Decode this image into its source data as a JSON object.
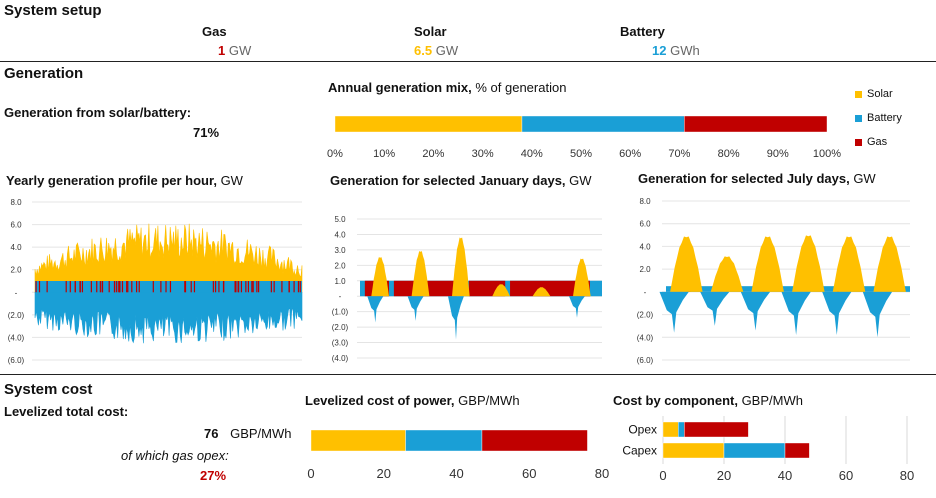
{
  "colors": {
    "solar": "#FFC000",
    "battery": "#1A9FD6",
    "gas": "#C00000",
    "grid": "#D9D9D9",
    "axis": "#595959"
  },
  "setup": {
    "title": "System setup",
    "gas": {
      "label": "Gas",
      "value": "1",
      "unit": "GW"
    },
    "solar": {
      "label": "Solar",
      "value": "6.5",
      "unit": "GW"
    },
    "battery": {
      "label": "Battery",
      "value": "12",
      "unit": "GWh"
    }
  },
  "generation": {
    "title": "Generation",
    "share_label": "Generation from solar/battery:",
    "share_value": "71%"
  },
  "cost": {
    "title": "System cost",
    "total_label": "Levelized total cost:",
    "total_value": "76",
    "total_unit": "GBP/MWh",
    "opex_label": "of which gas opex:",
    "opex_value": "27%"
  },
  "chart_titles": {
    "mix": {
      "bold": "Annual generation mix,",
      "rest": " % of generation"
    },
    "yearly": {
      "bold": "Yearly generation profile per hour,",
      "rest": " GW"
    },
    "jan": {
      "bold": "Generation for selected January days,",
      "rest": " GW"
    },
    "jul": {
      "bold": "Generation for selected July days,",
      "rest": " GW"
    },
    "lcop": {
      "bold": "Levelized cost of power,",
      "rest": " GBP/MWh"
    },
    "comp": {
      "bold": "Cost by component,",
      "rest": " GBP/MWh"
    }
  },
  "chart_data": [
    {
      "id": "mix",
      "type": "bar",
      "orientation": "horizontal",
      "stacked": true,
      "categories": [
        ""
      ],
      "series": [
        {
          "name": "Solar",
          "values": [
            38
          ]
        },
        {
          "name": "Battery",
          "values": [
            33
          ]
        },
        {
          "name": "Gas",
          "values": [
            29
          ]
        }
      ],
      "xlim": [
        0,
        100
      ],
      "xticks": [
        "0%",
        "10%",
        "20%",
        "30%",
        "40%",
        "50%",
        "60%",
        "70%",
        "80%",
        "90%",
        "100%"
      ],
      "legend": "right"
    },
    {
      "id": "yearly",
      "type": "area",
      "description_of_series": "hourly values over one year",
      "ylim": [
        -6,
        8
      ],
      "yticks": [
        "8.0",
        "6.0",
        "4.0",
        "2.0",
        "-",
        "(2.0)",
        "(4.0)",
        "(6.0)"
      ],
      "series": [
        {
          "name": "Solar",
          "envelope_max": 6.3
        },
        {
          "name": "Battery",
          "envelope_min": -4.6
        },
        {
          "name": "Gas",
          "level": 1.0
        }
      ],
      "grid": true
    },
    {
      "id": "jan",
      "type": "area",
      "ylim": [
        -4,
        5
      ],
      "yticks": [
        "5.0",
        "4.0",
        "3.0",
        "2.0",
        "1.0",
        "-",
        "(1.0)",
        "(2.0)",
        "(3.0)",
        "(4.0)"
      ],
      "series": [
        {
          "name": "Solar",
          "peaks": [
            2.6,
            3.0,
            3.9,
            0.8,
            0.6,
            2.5
          ]
        },
        {
          "name": "Battery",
          "discharge_peaks": [
            -1.7,
            -1.6,
            -2.8,
            0,
            0,
            -1.4
          ]
        },
        {
          "name": "Gas",
          "level": 1.0
        }
      ],
      "grid": true
    },
    {
      "id": "jul",
      "type": "area",
      "ylim": [
        -6,
        8
      ],
      "yticks": [
        "8.0",
        "6.0",
        "4.0",
        "2.0",
        "-",
        "(2.0)",
        "(4.0)",
        "(6.0)"
      ],
      "series": [
        {
          "name": "Solar",
          "peaks": [
            5.0,
            3.2,
            5.0,
            5.1,
            5.0,
            5.0
          ]
        },
        {
          "name": "Battery",
          "discharge_peaks": [
            -3.6,
            -3.0,
            -3.4,
            -3.8,
            -3.8,
            -4.0
          ]
        },
        {
          "name": "Gas",
          "level": 0.5
        }
      ],
      "grid": true
    },
    {
      "id": "lcop",
      "type": "bar",
      "orientation": "horizontal",
      "stacked": true,
      "categories": [
        ""
      ],
      "series": [
        {
          "name": "Solar",
          "values": [
            26
          ]
        },
        {
          "name": "Battery",
          "values": [
            21
          ]
        },
        {
          "name": "Gas",
          "values": [
            29
          ]
        }
      ],
      "xlim": [
        0,
        80
      ],
      "xticks": [
        "0",
        "20",
        "40",
        "60",
        "80"
      ]
    },
    {
      "id": "comp",
      "type": "bar",
      "orientation": "horizontal",
      "stacked": true,
      "categories": [
        "Opex",
        "Capex"
      ],
      "series": [
        {
          "name": "Solar",
          "values": [
            5,
            20
          ]
        },
        {
          "name": "Battery",
          "values": [
            2,
            20
          ]
        },
        {
          "name": "Gas",
          "values": [
            21,
            8
          ]
        }
      ],
      "xlim": [
        0,
        80
      ],
      "xticks": [
        "0",
        "20",
        "40",
        "60",
        "80"
      ],
      "grid": true
    }
  ]
}
